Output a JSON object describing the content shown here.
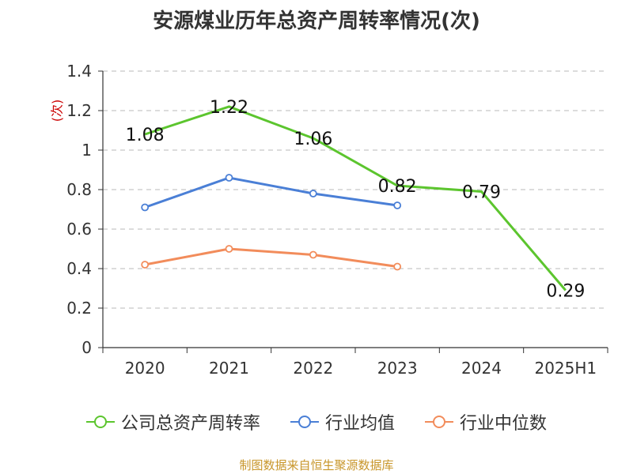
{
  "chart_data": {
    "type": "line",
    "title": "安源煤业历年总资产周转率情况(次)",
    "ylabel": "(次)",
    "xlabel": "",
    "categories": [
      "2020",
      "2021",
      "2022",
      "2023",
      "2024",
      "2025H1"
    ],
    "ylim": [
      0,
      1.4
    ],
    "yticks": [
      "0",
      "0.2",
      "0.4",
      "0.6",
      "0.8",
      "1",
      "1.2",
      "1.4"
    ],
    "grid": true,
    "legend_position": "bottom",
    "series": [
      {
        "name": "公司总资产周转率",
        "color": "#5cc52e",
        "values": [
          1.08,
          1.22,
          1.06,
          0.82,
          0.79,
          0.29
        ],
        "labels": [
          "1.08",
          "1.22",
          "1.06",
          "0.82",
          "0.79",
          "0.29"
        ],
        "markers": false
      },
      {
        "name": "行业均值",
        "color": "#4a7fd6",
        "values": [
          0.71,
          0.86,
          0.78,
          0.72,
          null,
          null
        ],
        "markers": true
      },
      {
        "name": "行业中位数",
        "color": "#f28c5b",
        "values": [
          0.42,
          0.5,
          0.47,
          0.41,
          null,
          null
        ],
        "markers": true
      }
    ]
  },
  "source": "制图数据来自恒生聚源数据库"
}
